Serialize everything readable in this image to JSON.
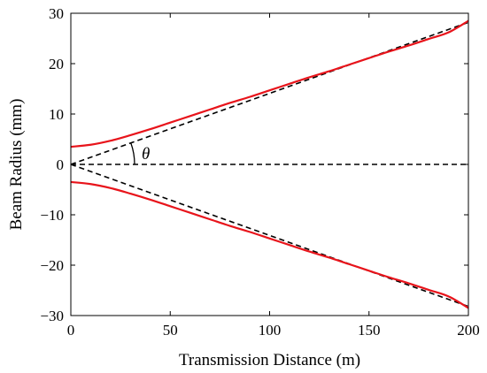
{
  "chart_data": {
    "type": "line",
    "xlabel": "Transmission Distance (m)",
    "ylabel": "Beam Radius (mm)",
    "xlim": [
      0,
      200
    ],
    "ylim": [
      -30,
      30
    ],
    "xticks": [
      "0",
      "50",
      "100",
      "150",
      "200"
    ],
    "yticks": [
      "30",
      "20",
      "10",
      "0",
      "−10",
      "−20",
      "−30"
    ],
    "grid": false,
    "annotation": "θ",
    "series": [
      {
        "role": "beam envelope (upper)",
        "style": "solid",
        "color": "#e8141b",
        "x": [
          0,
          10,
          20,
          30,
          40,
          50,
          60,
          70,
          80,
          90,
          100,
          110,
          120,
          130,
          140,
          150,
          160,
          170,
          180,
          190,
          200
        ],
        "y": [
          3.5,
          3.9,
          4.7,
          5.8,
          7.0,
          8.3,
          9.6,
          10.9,
          12.2,
          13.4,
          14.7,
          16.0,
          17.3,
          18.5,
          19.8,
          21.1,
          22.4,
          23.6,
          24.9,
          26.2,
          28.5
        ]
      },
      {
        "role": "beam envelope (lower)",
        "style": "solid",
        "color": "#e8141b",
        "x": [
          0,
          10,
          20,
          30,
          40,
          50,
          60,
          70,
          80,
          90,
          100,
          110,
          120,
          130,
          140,
          150,
          160,
          170,
          180,
          190,
          200
        ],
        "y": [
          -3.5,
          -3.9,
          -4.7,
          -5.8,
          -7.0,
          -8.3,
          -9.6,
          -10.9,
          -12.2,
          -13.4,
          -14.7,
          -16.0,
          -17.3,
          -18.5,
          -19.8,
          -21.1,
          -22.4,
          -23.6,
          -24.9,
          -26.2,
          -28.5
        ]
      },
      {
        "role": "upper asymptote",
        "style": "dashed",
        "color": "#000000",
        "x": [
          0,
          200
        ],
        "y": [
          0,
          28.2
        ]
      },
      {
        "role": "lower asymptote",
        "style": "dashed",
        "color": "#000000",
        "x": [
          0,
          200
        ],
        "y": [
          0,
          -28.2
        ]
      },
      {
        "role": "beam axis",
        "style": "dashed",
        "color": "#000000",
        "x": [
          0,
          200
        ],
        "y": [
          0,
          0
        ]
      }
    ]
  }
}
